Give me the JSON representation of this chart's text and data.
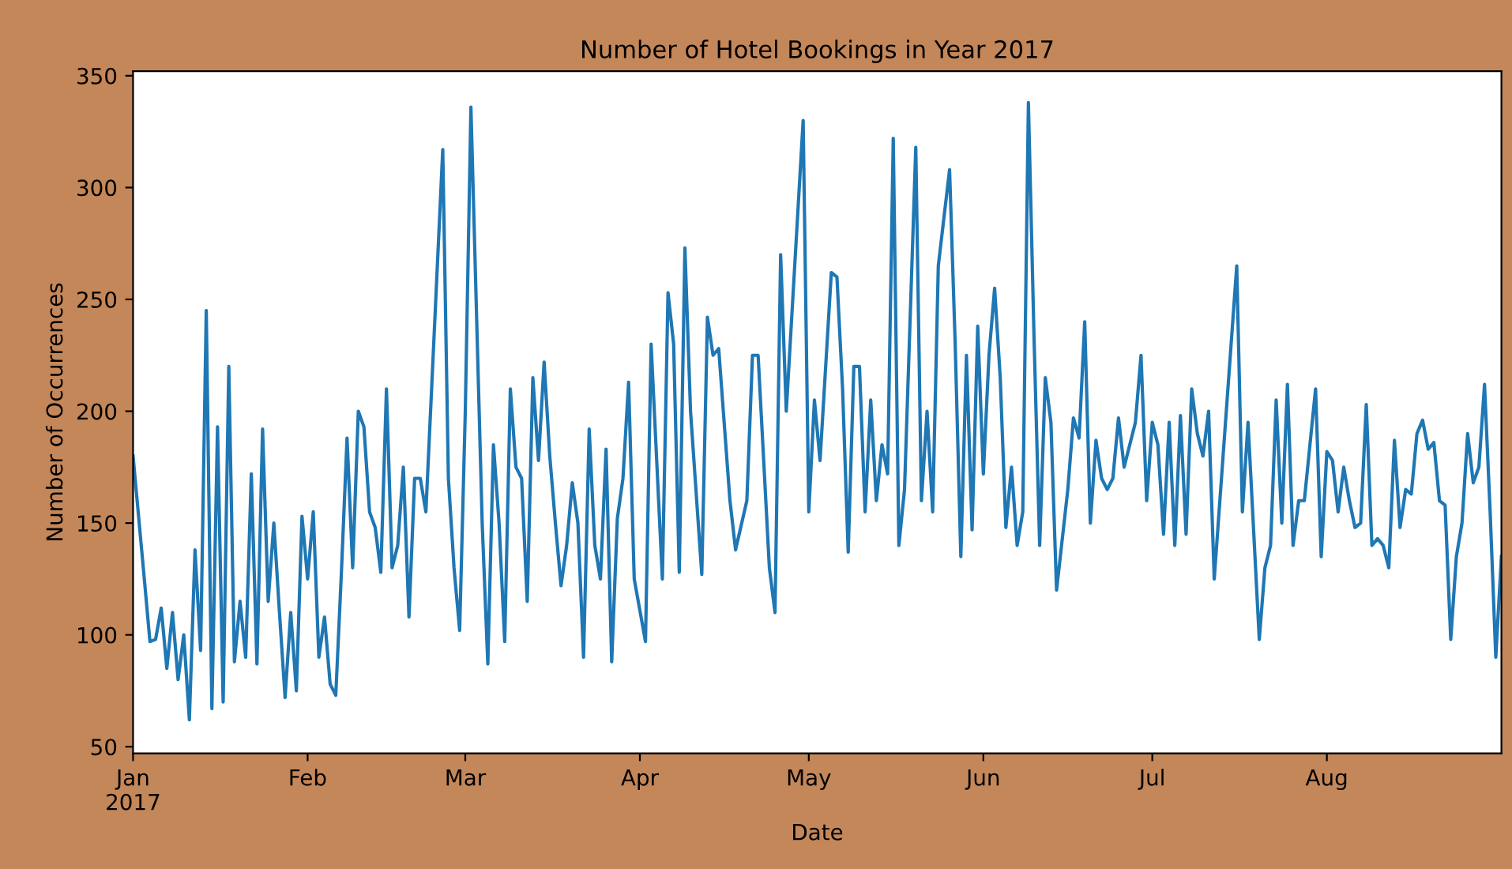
{
  "chart_data": {
    "type": "line",
    "title": "Number of Hotel Bookings in Year 2017",
    "xlabel": "Date",
    "ylabel": "Number of Occurrences",
    "xlim": [
      "2017-01-01",
      "2017-09-01"
    ],
    "ylim": [
      47,
      352
    ],
    "yticks": [
      50,
      100,
      150,
      200,
      250,
      300,
      350
    ],
    "xticks": [
      {
        "value": "2017-01-01",
        "label": "Jan\n2017"
      },
      {
        "value": "2017-02-01",
        "label": "Feb"
      },
      {
        "value": "2017-03-01",
        "label": "Mar"
      },
      {
        "value": "2017-04-01",
        "label": "Apr"
      },
      {
        "value": "2017-05-01",
        "label": "May"
      },
      {
        "value": "2017-06-01",
        "label": "Jun"
      },
      {
        "value": "2017-07-01",
        "label": "Jul"
      },
      {
        "value": "2017-08-01",
        "label": "Aug"
      }
    ],
    "grid": false,
    "legend": false,
    "series": [
      {
        "color": "#1f77b4",
        "x": [
          "2017-01-01",
          "2017-01-03",
          "2017-01-04",
          "2017-01-05",
          "2017-01-06",
          "2017-01-07",
          "2017-01-08",
          "2017-01-09",
          "2017-01-10",
          "2017-01-11",
          "2017-01-12",
          "2017-01-13",
          "2017-01-14",
          "2017-01-15",
          "2017-01-16",
          "2017-01-17",
          "2017-01-18",
          "2017-01-19",
          "2017-01-20",
          "2017-01-21",
          "2017-01-22",
          "2017-01-23",
          "2017-01-24",
          "2017-01-25",
          "2017-01-26",
          "2017-01-27",
          "2017-01-28",
          "2017-01-29",
          "2017-01-30",
          "2017-01-31",
          "2017-02-01",
          "2017-02-02",
          "2017-02-03",
          "2017-02-04",
          "2017-02-05",
          "2017-02-06",
          "2017-02-07",
          "2017-02-08",
          "2017-02-09",
          "2017-02-10",
          "2017-02-11",
          "2017-02-12",
          "2017-02-13",
          "2017-02-14",
          "2017-02-15",
          "2017-02-16",
          "2017-02-17",
          "2017-02-18",
          "2017-02-19",
          "2017-02-20",
          "2017-02-21",
          "2017-02-22",
          "2017-02-25",
          "2017-02-26",
          "2017-02-27",
          "2017-02-28",
          "2017-03-01",
          "2017-03-02",
          "2017-03-04",
          "2017-03-05",
          "2017-03-06",
          "2017-03-07",
          "2017-03-08",
          "2017-03-09",
          "2017-03-10",
          "2017-03-11",
          "2017-03-12",
          "2017-03-13",
          "2017-03-14",
          "2017-03-15",
          "2017-03-16",
          "2017-03-17",
          "2017-03-18",
          "2017-03-19",
          "2017-03-20",
          "2017-03-21",
          "2017-03-22",
          "2017-03-23",
          "2017-03-24",
          "2017-03-25",
          "2017-03-26",
          "2017-03-27",
          "2017-03-28",
          "2017-03-29",
          "2017-03-30",
          "2017-03-31",
          "2017-04-02",
          "2017-04-03",
          "2017-04-05",
          "2017-04-06",
          "2017-04-07",
          "2017-04-08",
          "2017-04-09",
          "2017-04-10",
          "2017-04-12",
          "2017-04-13",
          "2017-04-14",
          "2017-04-15",
          "2017-04-17",
          "2017-04-18",
          "2017-04-20",
          "2017-04-21",
          "2017-04-22",
          "2017-04-24",
          "2017-04-25",
          "2017-04-26",
          "2017-04-27",
          "2017-04-30",
          "2017-05-01",
          "2017-05-02",
          "2017-05-03",
          "2017-05-04",
          "2017-05-05",
          "2017-05-06",
          "2017-05-07",
          "2017-05-08",
          "2017-05-09",
          "2017-05-10",
          "2017-05-11",
          "2017-05-12",
          "2017-05-13",
          "2017-05-14",
          "2017-05-15",
          "2017-05-16",
          "2017-05-17",
          "2017-05-18",
          "2017-05-20",
          "2017-05-21",
          "2017-05-22",
          "2017-05-23",
          "2017-05-24",
          "2017-05-26",
          "2017-05-27",
          "2017-05-28",
          "2017-05-29",
          "2017-05-30",
          "2017-05-31",
          "2017-06-01",
          "2017-06-02",
          "2017-06-03",
          "2017-06-04",
          "2017-06-05",
          "2017-06-06",
          "2017-06-07",
          "2017-06-08",
          "2017-06-09",
          "2017-06-10",
          "2017-06-11",
          "2017-06-12",
          "2017-06-13",
          "2017-06-14",
          "2017-06-16",
          "2017-06-17",
          "2017-06-18",
          "2017-06-19",
          "2017-06-20",
          "2017-06-21",
          "2017-06-22",
          "2017-06-23",
          "2017-06-24",
          "2017-06-25",
          "2017-06-26",
          "2017-06-28",
          "2017-06-29",
          "2017-06-30",
          "2017-07-01",
          "2017-07-02",
          "2017-07-03",
          "2017-07-04",
          "2017-07-05",
          "2017-07-06",
          "2017-07-07",
          "2017-07-08",
          "2017-07-09",
          "2017-07-10",
          "2017-07-11",
          "2017-07-12",
          "2017-07-16",
          "2017-07-17",
          "2017-07-18",
          "2017-07-20",
          "2017-07-21",
          "2017-07-22",
          "2017-07-23",
          "2017-07-24",
          "2017-07-25",
          "2017-07-26",
          "2017-07-27",
          "2017-07-28",
          "2017-07-30",
          "2017-07-31",
          "2017-08-01",
          "2017-08-02",
          "2017-08-03",
          "2017-08-04",
          "2017-08-05",
          "2017-08-06",
          "2017-08-07",
          "2017-08-08",
          "2017-08-09",
          "2017-08-10",
          "2017-08-11",
          "2017-08-12",
          "2017-08-13",
          "2017-08-14",
          "2017-08-15",
          "2017-08-16",
          "2017-08-17",
          "2017-08-18",
          "2017-08-19",
          "2017-08-20",
          "2017-08-21",
          "2017-08-22",
          "2017-08-23",
          "2017-08-24",
          "2017-08-25",
          "2017-08-26",
          "2017-08-27",
          "2017-08-28",
          "2017-08-29",
          "2017-08-30",
          "2017-08-31",
          "2017-09-01"
        ],
        "values": [
          180,
          125,
          97,
          98,
          112,
          85,
          110,
          80,
          100,
          62,
          138,
          93,
          245,
          67,
          193,
          70,
          220,
          88,
          115,
          90,
          172,
          87,
          192,
          115,
          150,
          110,
          72,
          110,
          75,
          153,
          125,
          155,
          90,
          108,
          78,
          73,
          128,
          188,
          130,
          200,
          193,
          155,
          148,
          128,
          210,
          130,
          140,
          175,
          108,
          170,
          170,
          155,
          317,
          170,
          130,
          102,
          200,
          336,
          150,
          87,
          185,
          150,
          97,
          210,
          175,
          170,
          115,
          215,
          178,
          222,
          180,
          150,
          122,
          140,
          168,
          150,
          90,
          192,
          140,
          125,
          183,
          88,
          152,
          170,
          213,
          125,
          97,
          230,
          125,
          253,
          230,
          128,
          273,
          200,
          127,
          242,
          225,
          228,
          160,
          138,
          160,
          225,
          225,
          130,
          110,
          270,
          200,
          330,
          155,
          205,
          178,
          220,
          262,
          260,
          210,
          137,
          220,
          220,
          155,
          205,
          160,
          185,
          172,
          322,
          140,
          165,
          318,
          160,
          200,
          155,
          265,
          308,
          230,
          135,
          225,
          147,
          238,
          172,
          225,
          255,
          215,
          148,
          175,
          140,
          155,
          338,
          233,
          140,
          215,
          195,
          120,
          165,
          197,
          188,
          240,
          150,
          187,
          170,
          165,
          170,
          197,
          175,
          195,
          225,
          160,
          195,
          185,
          145,
          195,
          140,
          198,
          145,
          210,
          190,
          180,
          200,
          125,
          265,
          155,
          195,
          98,
          130,
          140,
          205,
          150,
          212,
          140,
          160,
          160,
          210,
          135,
          182,
          178,
          155,
          175,
          160,
          148,
          150,
          203,
          140,
          143,
          140,
          130,
          187,
          148,
          165,
          163,
          190,
          196,
          183,
          186,
          160,
          158,
          98,
          135,
          150,
          190,
          168,
          175,
          212,
          155,
          90,
          135
        ]
      }
    ]
  }
}
